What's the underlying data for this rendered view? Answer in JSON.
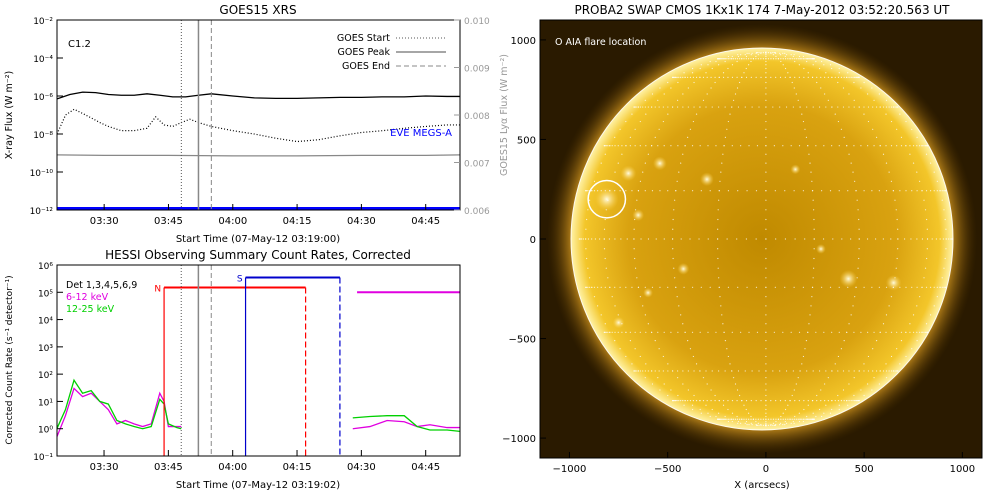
{
  "chart_data": [
    {
      "type": "line",
      "title": "GOES15 XRS",
      "xlabel": "Start Time (07-May-12 03:19:00)",
      "ylabel": "X-ray Flux (W m⁻²)",
      "y2label": "GOES15 Lyα Flux (W m⁻²)",
      "yscale": "log",
      "ylim": [
        1e-12,
        0.01
      ],
      "y2lim": [
        0.006,
        0.01
      ],
      "xlim": [
        "03:19:00",
        "04:53:00"
      ],
      "xticks": [
        "03:30",
        "03:45",
        "04:00",
        "04:15",
        "04:30",
        "04:45"
      ],
      "yticks": [
        "10⁻¹²",
        "10⁻¹⁰",
        "10⁻⁸",
        "10⁻⁶",
        "10⁻⁴",
        "10⁻²"
      ],
      "y2ticks": [
        "0.006",
        "0.007",
        "0.008",
        "0.009",
        "0.010"
      ],
      "annotation": "C1.2",
      "eve_label": "EVE MEGS-A",
      "legend": {
        "position": "top-right",
        "items": [
          "GOES Start",
          "GOES Peak",
          "GOES End"
        ]
      },
      "markers": {
        "start": "03:48",
        "peak": "03:52",
        "end": "03:55"
      },
      "series": [
        {
          "name": "",
          "color": "#000000",
          "style": "solid",
          "x": [
            "03:19",
            "03:22",
            "03:25",
            "03:28",
            "03:31",
            "03:34",
            "03:37",
            "03:40",
            "03:43",
            "03:46",
            "03:49",
            "03:52",
            "03:55",
            "04:00",
            "04:05",
            "04:10",
            "04:15",
            "04:20",
            "04:25",
            "04:30",
            "04:35",
            "04:40",
            "04:45",
            "04:50",
            "04:53"
          ],
          "values": [
            7e-07,
            1.2e-06,
            1.6e-06,
            1.5e-06,
            1.2e-06,
            1.1e-06,
            1.1e-06,
            1.3e-06,
            1.1e-06,
            9e-07,
            9e-07,
            1.1e-06,
            1.3e-06,
            1e-06,
            8e-07,
            7.5e-07,
            7.5e-07,
            8e-07,
            8.5e-07,
            8.5e-07,
            9e-07,
            9e-07,
            1e-06,
            9.5e-07,
            9.5e-07
          ]
        },
        {
          "name": "",
          "color": "#000000",
          "style": "dotted",
          "x": [
            "03:19",
            "03:21",
            "03:23",
            "03:25",
            "03:27",
            "03:29",
            "03:31",
            "03:34",
            "03:37",
            "03:40",
            "03:42",
            "03:44",
            "03:46",
            "03:48",
            "03:50",
            "03:52",
            "03:55",
            "04:00",
            "04:05",
            "04:10",
            "04:15",
            "04:20",
            "04:25",
            "04:30",
            "04:35",
            "04:40",
            "04:45",
            "04:50",
            "04:53"
          ],
          "values": [
            1e-08,
            1e-07,
            2e-07,
            1.2e-07,
            7e-08,
            4e-08,
            2.5e-08,
            1.5e-08,
            1.5e-08,
            2e-08,
            8e-08,
            3e-08,
            2.5e-08,
            4e-08,
            6e-08,
            4e-08,
            2.5e-08,
            1.5e-08,
            1e-08,
            6e-09,
            4e-09,
            5e-09,
            8e-09,
            1.2e-08,
            1.5e-08,
            2e-08,
            2.5e-08,
            3e-08,
            3e-08
          ]
        },
        {
          "name": "",
          "color": "#888888",
          "style": "solid",
          "axis": "y2",
          "x": [
            "03:19",
            "03:30",
            "03:45",
            "04:00",
            "04:15",
            "04:30",
            "04:45",
            "04:53"
          ],
          "values": [
            0.00716,
            0.00715,
            0.00715,
            0.00714,
            0.00714,
            0.00715,
            0.00715,
            0.00716
          ]
        },
        {
          "name": "EVE MEGS-A",
          "color": "#0000ff",
          "style": "solid",
          "x": [
            "03:19",
            "04:53"
          ],
          "values": [
            1.2e-12,
            1.2e-12
          ]
        }
      ]
    },
    {
      "type": "line",
      "title": "HESSI Observing Summary Count Rates, Corrected",
      "xlabel": "Start Time (07-May-12 03:19:02)",
      "ylabel": "Corrected Count Rate (s⁻¹ detector⁻¹)",
      "yscale": "log",
      "ylim": [
        0.1,
        1000000.0
      ],
      "xlim": [
        "03:19:02",
        "04:53:00"
      ],
      "xticks": [
        "03:30",
        "03:45",
        "04:00",
        "04:15",
        "04:30",
        "04:45"
      ],
      "yticks": [
        "10⁻¹",
        "10⁰",
        "10¹",
        "10²",
        "10³",
        "10⁴",
        "10⁵",
        "10⁶"
      ],
      "detector_label": "Det 1,3,4,5,6,9",
      "flag_labels": {
        "night": "N",
        "saa": "S"
      },
      "series": [
        {
          "name": "6-12 keV",
          "color": "#e000e0",
          "x": [
            "03:19",
            "03:21",
            "03:23",
            "03:25",
            "03:27",
            "03:29",
            "03:31",
            "03:33",
            "03:35",
            "03:37",
            "03:39",
            "03:41",
            "03:43",
            "03:44",
            "03:45",
            "03:47",
            "03:48"
          ],
          "values": [
            0.5,
            3,
            30,
            15,
            20,
            10,
            5,
            1.5,
            2,
            1.5,
            1.2,
            1.5,
            20,
            10,
            1.2,
            1.2,
            1.2
          ]
        },
        {
          "name": "12-25 keV",
          "color": "#00d000",
          "x": [
            "03:19",
            "03:21",
            "03:23",
            "03:25",
            "03:27",
            "03:29",
            "03:31",
            "03:33",
            "03:35",
            "03:37",
            "03:39",
            "03:41",
            "03:43",
            "03:44",
            "03:45",
            "03:47",
            "03:48"
          ],
          "values": [
            1,
            5,
            60,
            20,
            25,
            10,
            8,
            2,
            1.5,
            1.2,
            1.0,
            1.2,
            12,
            8,
            1.5,
            1.1,
            1.0
          ]
        },
        {
          "name": "6-12 keV",
          "color": "#e000e0",
          "x": [
            "04:28",
            "04:32",
            "04:36",
            "04:40",
            "04:43",
            "04:46",
            "04:50",
            "04:53"
          ],
          "values": [
            1,
            1.2,
            2,
            1.8,
            1.2,
            1.4,
            1.1,
            1.1
          ]
        },
        {
          "name": "12-25 keV",
          "color": "#00d000",
          "x": [
            "04:28",
            "04:32",
            "04:36",
            "04:40",
            "04:43",
            "04:46",
            "04:50",
            "04:53"
          ],
          "values": [
            2.5,
            2.8,
            3,
            3,
            1.2,
            0.9,
            0.9,
            0.8
          ]
        }
      ],
      "flags": [
        {
          "label": "N",
          "color": "#ff0000",
          "from": "03:44",
          "to": "04:17",
          "level": 150000.0
        },
        {
          "label": "S",
          "color": "#0000cc",
          "from": "04:03",
          "to": "04:25",
          "level": 350000.0
        },
        {
          "label": "",
          "color": "#e000e0",
          "from": "04:29",
          "to": "04:53",
          "level": 100000.0
        }
      ]
    },
    {
      "type": "heatmap",
      "title": "PROBA2 SWAP CMOS 1Kx1K 174  7-May-2012 03:52:20.563 UT",
      "xlabel": "X (arcsecs)",
      "ylabel": "",
      "xlim": [
        -1150,
        1100
      ],
      "ylim": [
        -1100,
        1100
      ],
      "xticks": [
        "−1000",
        "−500",
        "0",
        "500",
        "1000"
      ],
      "yticks": [
        "−1000",
        "−500",
        "0",
        "500",
        "1000"
      ],
      "annotation": "O AIA flare location",
      "flare_location": {
        "x": -810,
        "y": 200,
        "radius": 95
      },
      "solar_radius_arcsec": 950
    }
  ]
}
